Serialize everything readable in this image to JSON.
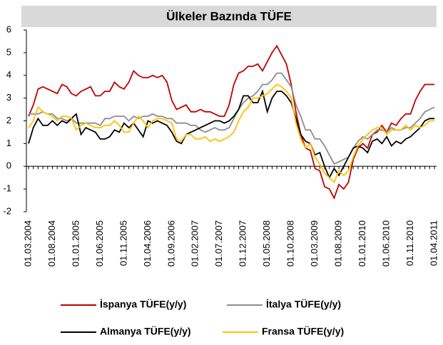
{
  "chart_data": {
    "type": "line",
    "title": "Ülkeler Bazında  TÜFE",
    "categories": [
      "01.03.2004",
      null,
      null,
      null,
      null,
      "01.08.2004",
      null,
      null,
      null,
      null,
      "01.01.2005",
      null,
      null,
      null,
      null,
      "01.06.2005",
      null,
      null,
      null,
      null,
      "01.11.2005",
      null,
      null,
      null,
      null,
      "01.04.2006",
      null,
      null,
      null,
      null,
      "01.09.2006",
      null,
      null,
      null,
      null,
      "01.02.2007",
      null,
      null,
      null,
      null,
      "01.07.2007",
      null,
      null,
      null,
      null,
      "01.12.2007",
      null,
      null,
      null,
      null,
      "01.05.2008",
      null,
      null,
      null,
      null,
      "01.10.2008",
      null,
      null,
      null,
      null,
      "01.03.2009",
      null,
      null,
      null,
      null,
      "01.08.2009",
      null,
      null,
      null,
      null,
      "01.01.2010",
      null,
      null,
      null,
      null,
      "01.06.2010",
      null,
      null,
      null,
      null,
      "01.11.2010",
      null,
      null,
      null,
      null,
      "01.04.2011"
    ],
    "series": [
      {
        "name": "İspanya TÜFE(y/y)",
        "color": "#c00000",
        "values": [
          2.2,
          2.7,
          3.4,
          3.5,
          3.4,
          3.3,
          3.2,
          3.6,
          3.5,
          3.2,
          3.1,
          3.3,
          3.4,
          3.5,
          3.1,
          3.1,
          3.3,
          3.3,
          3.7,
          3.5,
          3.4,
          3.7,
          4.2,
          4.0,
          3.9,
          3.9,
          4.0,
          3.9,
          4.0,
          3.7,
          2.9,
          2.5,
          2.6,
          2.7,
          2.4,
          2.4,
          2.5,
          2.4,
          2.4,
          2.3,
          2.2,
          2.2,
          2.7,
          3.6,
          4.1,
          4.2,
          4.4,
          4.4,
          4.5,
          4.2,
          4.6,
          5.0,
          5.3,
          4.9,
          4.5,
          3.6,
          2.4,
          1.4,
          0.8,
          0.7,
          -0.1,
          -0.2,
          -0.9,
          -1.0,
          -1.4,
          -0.8,
          -1.0,
          -0.7,
          0.3,
          0.8,
          1.0,
          0.8,
          1.4,
          1.5,
          1.8,
          1.5,
          1.9,
          1.8,
          2.1,
          2.3,
          2.3,
          2.9,
          3.3,
          3.6,
          3.6,
          3.6
        ]
      },
      {
        "name": "İtalya TÜFE(y/y)",
        "color": "#8c8c8c",
        "values": [
          2.3,
          2.3,
          2.3,
          2.4,
          2.3,
          2.3,
          2.1,
          2.1,
          2.0,
          2.1,
          1.9,
          1.9,
          1.9,
          1.9,
          1.9,
          1.8,
          2.1,
          2.1,
          2.2,
          2.2,
          2.2,
          2.0,
          2.2,
          2.1,
          2.2,
          2.2,
          2.3,
          2.2,
          2.2,
          2.1,
          2.1,
          1.9,
          1.9,
          1.9,
          1.8,
          1.8,
          1.6,
          1.5,
          1.6,
          1.7,
          1.6,
          1.6,
          1.7,
          2.1,
          2.5,
          2.8,
          3.0,
          3.1,
          3.3,
          3.6,
          3.6,
          3.8,
          4.1,
          4.1,
          3.8,
          3.5,
          2.7,
          2.2,
          1.6,
          1.6,
          1.2,
          1.2,
          0.9,
          0.5,
          0.1,
          0.2,
          0.3,
          0.4,
          0.8,
          1.1,
          1.3,
          1.2,
          1.4,
          1.6,
          1.6,
          1.5,
          1.7,
          1.6,
          1.6,
          1.7,
          1.7,
          1.9,
          2.1,
          2.4,
          2.5,
          2.6
        ]
      },
      {
        "name": "Almanya TÜFE(y/y)",
        "color": "#000000",
        "values": [
          1.0,
          1.7,
          2.1,
          1.8,
          1.8,
          2.0,
          1.8,
          2.0,
          1.9,
          2.1,
          2.3,
          1.4,
          1.7,
          1.6,
          1.5,
          1.2,
          1.2,
          1.3,
          1.6,
          1.5,
          1.9,
          1.7,
          1.9,
          1.6,
          1.3,
          2.0,
          1.9,
          2.0,
          1.9,
          1.8,
          1.5,
          1.1,
          1.0,
          1.4,
          1.5,
          1.6,
          1.7,
          1.8,
          1.9,
          2.0,
          2.0,
          1.9,
          2.0,
          2.2,
          2.5,
          3.1,
          3.1,
          2.8,
          2.8,
          3.3,
          2.4,
          3.0,
          3.3,
          3.3,
          3.1,
          2.8,
          2.1,
          1.4,
          1.1,
          1.0,
          0.5,
          0.6,
          0.0,
          -0.5,
          -0.1,
          -0.4,
          0.0,
          0.4,
          0.8,
          0.9,
          0.8,
          0.6,
          1.1,
          1.2,
          1.0,
          1.3,
          0.9,
          1.1,
          1.0,
          1.2,
          1.3,
          1.5,
          1.7,
          2.0,
          2.1,
          2.1
        ]
      },
      {
        "name": "Fransa TÜFE(y/y)",
        "color": "#ffc000",
        "values": [
          1.7,
          2.0,
          2.6,
          2.4,
          2.3,
          2.2,
          2.0,
          2.2,
          2.2,
          2.1,
          1.6,
          1.8,
          1.9,
          1.8,
          1.7,
          1.7,
          1.8,
          1.8,
          2.0,
          1.8,
          1.5,
          1.5,
          1.9,
          2.2,
          2.0,
          1.7,
          2.0,
          2.1,
          2.1,
          2.0,
          1.9,
          1.2,
          1.1,
          1.4,
          1.4,
          1.2,
          1.2,
          1.3,
          1.1,
          1.2,
          1.1,
          1.2,
          1.3,
          1.5,
          2.0,
          2.4,
          2.6,
          3.0,
          3.0,
          3.1,
          3.2,
          3.4,
          3.6,
          3.5,
          3.3,
          3.0,
          1.9,
          1.2,
          0.8,
          1.0,
          0.4,
          0.1,
          -0.3,
          -0.5,
          -0.7,
          -0.2,
          -0.4,
          -0.2,
          0.4,
          0.9,
          1.2,
          1.4,
          1.6,
          1.7,
          1.7,
          1.4,
          1.6,
          1.6,
          1.6,
          1.8,
          1.6,
          1.8,
          1.7,
          1.8,
          2.0,
          2.0
        ]
      }
    ],
    "ylim": [
      -2,
      6
    ],
    "yticks": [
      -2,
      -1,
      0,
      1,
      2,
      3,
      4,
      5,
      6
    ]
  }
}
